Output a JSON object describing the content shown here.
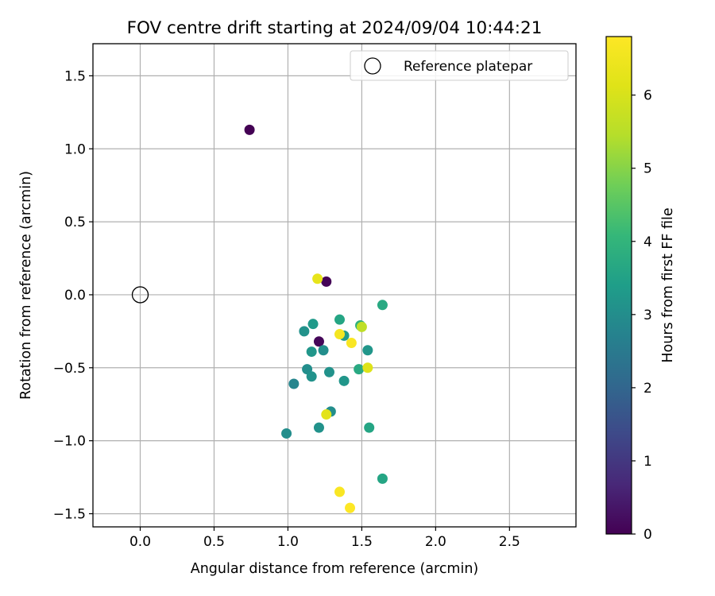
{
  "chart_data": {
    "type": "scatter",
    "title": "FOV centre drift starting at 2024/09/04 10:44:21",
    "xlabel": "Angular distance from reference (arcmin)",
    "ylabel": "Rotation from reference (arcmin)",
    "xlim": [
      -0.32,
      2.95
    ],
    "ylim": [
      -1.59,
      1.72
    ],
    "xticks": [
      0.0,
      0.5,
      1.0,
      1.5,
      2.0,
      2.5
    ],
    "xtick_labels": [
      "0.0",
      "0.5",
      "1.0",
      "1.5",
      "2.0",
      "2.5"
    ],
    "yticks": [
      -1.5,
      -1.0,
      -0.5,
      0.0,
      0.5,
      1.0,
      1.5
    ],
    "ytick_labels": [
      "−1.5",
      "−1.0",
      "−0.5",
      "0.0",
      "0.5",
      "1.0",
      "1.5"
    ],
    "grid": true,
    "legend": {
      "placement": "top-right",
      "entries": [
        {
          "label": "Reference platepar",
          "marker": "open-circle"
        }
      ]
    },
    "reference_point": {
      "x": 0.0,
      "y": 0.0
    },
    "colorbar": {
      "label": "Hours from first FF file",
      "colormap": "viridis",
      "range": [
        0,
        6.8
      ],
      "ticks": [
        0,
        1,
        2,
        3,
        4,
        5,
        6
      ],
      "tick_labels": [
        "0",
        "1",
        "2",
        "3",
        "4",
        "5",
        "6"
      ]
    },
    "points": [
      {
        "x": 0.74,
        "y": 1.13,
        "hours": 0.0
      },
      {
        "x": 1.26,
        "y": 0.09,
        "hours": 0.05
      },
      {
        "x": 1.21,
        "y": -0.32,
        "hours": 0.1
      },
      {
        "x": 1.2,
        "y": 0.11,
        "hours": 6.3
      },
      {
        "x": 1.64,
        "y": -0.07,
        "hours": 3.7
      },
      {
        "x": 1.35,
        "y": -0.17,
        "hours": 3.6
      },
      {
        "x": 1.17,
        "y": -0.2,
        "hours": 3.3
      },
      {
        "x": 1.11,
        "y": -0.25,
        "hours": 3.1
      },
      {
        "x": 1.49,
        "y": -0.21,
        "hours": 3.9
      },
      {
        "x": 1.5,
        "y": -0.22,
        "hours": 5.6
      },
      {
        "x": 1.38,
        "y": -0.28,
        "hours": 3.3
      },
      {
        "x": 1.35,
        "y": -0.27,
        "hours": 6.6
      },
      {
        "x": 1.43,
        "y": -0.33,
        "hours": 6.7
      },
      {
        "x": 1.16,
        "y": -0.39,
        "hours": 3.2
      },
      {
        "x": 1.24,
        "y": -0.38,
        "hours": 3.0
      },
      {
        "x": 1.54,
        "y": -0.38,
        "hours": 3.2
      },
      {
        "x": 1.13,
        "y": -0.51,
        "hours": 3.0
      },
      {
        "x": 1.28,
        "y": -0.53,
        "hours": 3.1
      },
      {
        "x": 1.48,
        "y": -0.51,
        "hours": 3.7
      },
      {
        "x": 1.54,
        "y": -0.5,
        "hours": 6.1
      },
      {
        "x": 1.16,
        "y": -0.56,
        "hours": 3.1
      },
      {
        "x": 1.38,
        "y": -0.59,
        "hours": 3.2
      },
      {
        "x": 1.04,
        "y": -0.61,
        "hours": 2.8
      },
      {
        "x": 1.29,
        "y": -0.8,
        "hours": 3.0
      },
      {
        "x": 1.26,
        "y": -0.82,
        "hours": 6.2
      },
      {
        "x": 1.21,
        "y": -0.91,
        "hours": 3.1
      },
      {
        "x": 1.55,
        "y": -0.91,
        "hours": 3.6
      },
      {
        "x": 0.99,
        "y": -0.95,
        "hours": 3.0
      },
      {
        "x": 1.64,
        "y": -1.26,
        "hours": 3.6
      },
      {
        "x": 1.35,
        "y": -1.35,
        "hours": 6.7
      },
      {
        "x": 1.42,
        "y": -1.46,
        "hours": 6.8
      }
    ]
  }
}
